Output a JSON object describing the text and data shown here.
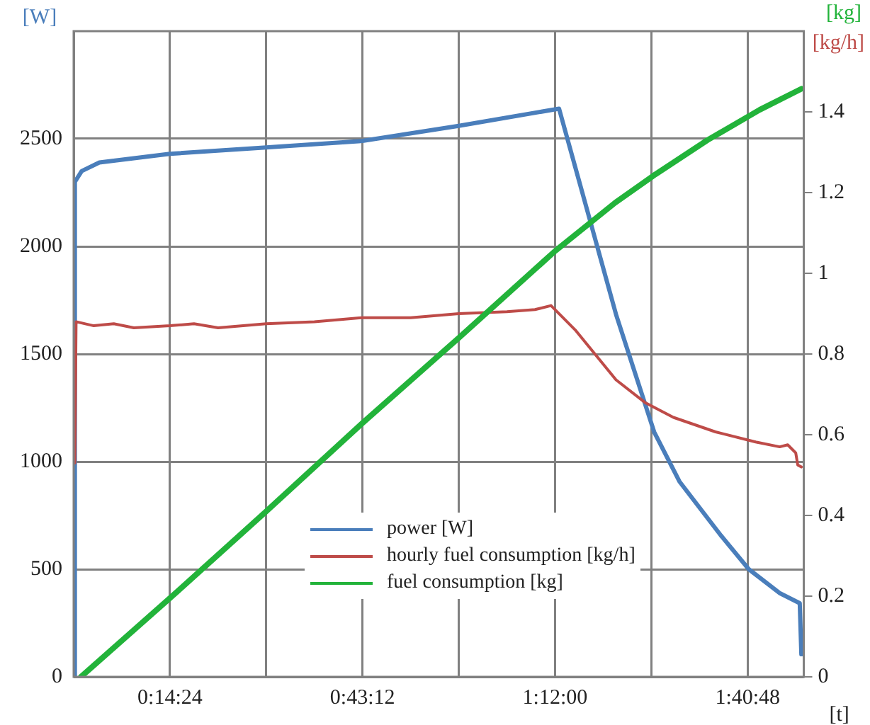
{
  "chart_data": {
    "type": "line",
    "xlabel": "[t]",
    "ylabel": "[W]",
    "y2label": "[kg/h]",
    "annotations": [
      "[kg]"
    ],
    "xlim": [
      0,
      1.82
    ],
    "xticks": [
      {
        "value": 0,
        "label": null
      },
      {
        "value": 0.24,
        "label": "0:14:24"
      },
      {
        "value": 0.48,
        "label": null
      },
      {
        "value": 0.72,
        "label": "0:43:12"
      },
      {
        "value": 0.96,
        "label": null
      },
      {
        "value": 1.2,
        "label": "1:12:00"
      },
      {
        "value": 1.44,
        "label": null
      },
      {
        "value": 1.68,
        "label": "1:40:48"
      }
    ],
    "ylim": [
      0,
      3000
    ],
    "yticks": [
      0,
      500,
      1000,
      1500,
      2000,
      2500
    ],
    "y2lim": [
      0,
      1.6
    ],
    "y2ticks": [
      0,
      0.2,
      0.4,
      0.6,
      0.8,
      1,
      1.2,
      1.4
    ],
    "grid": true,
    "legend": "bottom",
    "marker": "none",
    "line_style": "solid",
    "series": [
      {
        "name": "power [W]",
        "color": "#4a7ebb",
        "x": [
          0,
          0.003,
          0.02,
          0.064,
          0.24,
          0.48,
          0.72,
          0.96,
          1.21,
          1.352,
          1.447,
          1.51,
          1.613,
          1.683,
          1.761,
          1.81,
          1.814
        ],
        "values": [
          0,
          2300,
          2350,
          2390,
          2430,
          2460,
          2490,
          2560,
          2640,
          1684,
          1138,
          908,
          658,
          500,
          388,
          342,
          105
        ]
      },
      {
        "name": "hourly fuel consumption [kg/h]",
        "color": "#be4b48",
        "axis": "y2",
        "x": [
          0.003,
          0.006,
          0.05,
          0.1,
          0.15,
          0.24,
          0.3,
          0.36,
          0.48,
          0.6,
          0.72,
          0.84,
          0.96,
          1.08,
          1.15,
          1.19,
          1.25,
          1.352,
          1.424,
          1.495,
          1.6,
          1.7,
          1.76,
          1.78,
          1.8,
          1.805,
          1.814
        ],
        "values": [
          0.53,
          0.88,
          0.87,
          0.875,
          0.865,
          0.87,
          0.875,
          0.865,
          0.875,
          0.88,
          0.89,
          0.89,
          0.9,
          0.905,
          0.91,
          0.92,
          0.86,
          0.736,
          0.68,
          0.643,
          0.607,
          0.582,
          0.57,
          0.575,
          0.555,
          0.525,
          0.52
        ]
      },
      {
        "name": "fuel consumption [kg]",
        "color": "#22b33a",
        "axis": "y2",
        "x": [
          0.018,
          0.24,
          0.48,
          0.72,
          0.96,
          1.2,
          1.35,
          1.45,
          1.58,
          1.71,
          1.814
        ],
        "values": [
          0,
          0.195,
          0.41,
          0.629,
          0.84,
          1.055,
          1.175,
          1.245,
          1.33,
          1.405,
          1.457
        ]
      }
    ]
  }
}
